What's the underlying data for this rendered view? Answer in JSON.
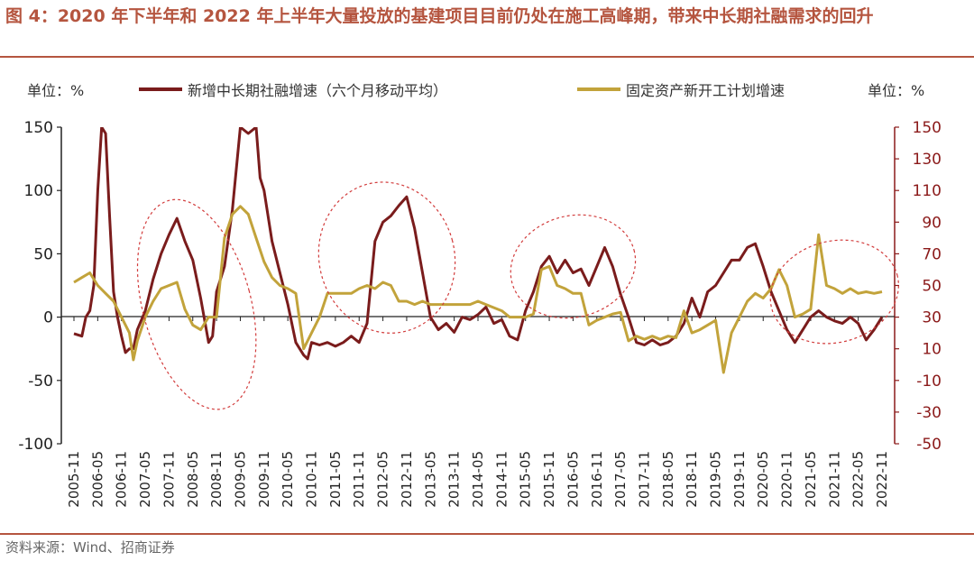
{
  "title": "图 4：2020 年下半年和 2022 年上半年大量投放的基建项目目前仍处在施工高峰期，带来中长期社融需求的回升",
  "unit_left": "单位：%",
  "unit_right": "单位：%",
  "source": "资料来源：Wind、招商证券",
  "colors": {
    "series1": "#7a1c1c",
    "series2": "#c2a33b",
    "accent": "#b5553f",
    "ellipse": "#d23c3c"
  },
  "chart_data": {
    "type": "line",
    "x_ticks": [
      "2005-11",
      "2006-05",
      "2006-11",
      "2007-05",
      "2007-11",
      "2008-05",
      "2008-11",
      "2009-05",
      "2009-11",
      "2010-05",
      "2010-11",
      "2011-05",
      "2011-11",
      "2012-05",
      "2012-11",
      "2013-05",
      "2013-11",
      "2014-05",
      "2014-11",
      "2015-05",
      "2015-11",
      "2016-05",
      "2016-11",
      "2017-05",
      "2017-11",
      "2018-05",
      "2018-11",
      "2019-05",
      "2019-11",
      "2020-05",
      "2020-11",
      "2021-05",
      "2021-11",
      "2022-05",
      "2022-11"
    ],
    "y_left": {
      "ticks": [
        150,
        100,
        50,
        0,
        -50,
        -100
      ],
      "range": [
        -100,
        150
      ]
    },
    "y_right": {
      "ticks": [
        150,
        130,
        110,
        90,
        70,
        50,
        30,
        10,
        -10,
        -30,
        -50
      ],
      "range": [
        -50,
        150
      ]
    },
    "series": [
      {
        "name": "新增中长期社融增速（六个月移动平均）",
        "axis": "left",
        "points": [
          [
            "2005-11",
            -13
          ],
          [
            "2006-01",
            -15
          ],
          [
            "2006-02",
            0
          ],
          [
            "2006-03",
            5
          ],
          [
            "2006-04",
            25
          ],
          [
            "2006-05",
            100
          ],
          [
            "2006-06",
            150
          ],
          [
            "2006-07",
            145
          ],
          [
            "2006-08",
            80
          ],
          [
            "2006-09",
            20
          ],
          [
            "2006-10",
            0
          ],
          [
            "2006-11",
            -15
          ],
          [
            "2006-12",
            -28
          ],
          [
            "2007-01",
            -25
          ],
          [
            "2007-02",
            -25
          ],
          [
            "2007-03",
            -10
          ],
          [
            "2007-05",
            5
          ],
          [
            "2007-07",
            30
          ],
          [
            "2007-09",
            50
          ],
          [
            "2007-11",
            65
          ],
          [
            "2008-01",
            78
          ],
          [
            "2008-03",
            60
          ],
          [
            "2008-05",
            45
          ],
          [
            "2008-07",
            15
          ],
          [
            "2008-09",
            -20
          ],
          [
            "2008-10",
            -15
          ],
          [
            "2008-11",
            20
          ],
          [
            "2009-01",
            40
          ],
          [
            "2009-03",
            85
          ],
          [
            "2009-05",
            150
          ],
          [
            "2009-07",
            145
          ],
          [
            "2009-09",
            150
          ],
          [
            "2009-10",
            110
          ],
          [
            "2009-11",
            100
          ],
          [
            "2010-01",
            60
          ],
          [
            "2010-03",
            35
          ],
          [
            "2010-05",
            10
          ],
          [
            "2010-07",
            -20
          ],
          [
            "2010-09",
            -30
          ],
          [
            "2010-10",
            -33
          ],
          [
            "2010-11",
            -20
          ],
          [
            "2011-01",
            -22
          ],
          [
            "2011-03",
            -20
          ],
          [
            "2011-05",
            -23
          ],
          [
            "2011-07",
            -20
          ],
          [
            "2011-09",
            -15
          ],
          [
            "2011-11",
            -20
          ],
          [
            "2012-01",
            -5
          ],
          [
            "2012-03",
            60
          ],
          [
            "2012-05",
            75
          ],
          [
            "2012-07",
            80
          ],
          [
            "2012-09",
            88
          ],
          [
            "2012-11",
            95
          ],
          [
            "2013-01",
            70
          ],
          [
            "2013-03",
            35
          ],
          [
            "2013-05",
            0
          ],
          [
            "2013-07",
            -10
          ],
          [
            "2013-09",
            -5
          ],
          [
            "2013-11",
            -12
          ],
          [
            "2014-01",
            0
          ],
          [
            "2014-03",
            -2
          ],
          [
            "2014-05",
            2
          ],
          [
            "2014-07",
            8
          ],
          [
            "2014-09",
            -5
          ],
          [
            "2014-11",
            -2
          ],
          [
            "2015-01",
            -15
          ],
          [
            "2015-03",
            -18
          ],
          [
            "2015-05",
            5
          ],
          [
            "2015-07",
            20
          ],
          [
            "2015-09",
            40
          ],
          [
            "2015-11",
            48
          ],
          [
            "2016-01",
            35
          ],
          [
            "2016-03",
            45
          ],
          [
            "2016-05",
            35
          ],
          [
            "2016-07",
            38
          ],
          [
            "2016-09",
            25
          ],
          [
            "2016-11",
            40
          ],
          [
            "2017-01",
            55
          ],
          [
            "2017-03",
            40
          ],
          [
            "2017-05",
            18
          ],
          [
            "2017-07",
            0
          ],
          [
            "2017-09",
            -20
          ],
          [
            "2017-11",
            -22
          ],
          [
            "2018-01",
            -18
          ],
          [
            "2018-03",
            -22
          ],
          [
            "2018-05",
            -20
          ],
          [
            "2018-07",
            -15
          ],
          [
            "2018-09",
            -5
          ],
          [
            "2018-11",
            15
          ],
          [
            "2019-01",
            0
          ],
          [
            "2019-03",
            20
          ],
          [
            "2019-05",
            25
          ],
          [
            "2019-07",
            35
          ],
          [
            "2019-09",
            45
          ],
          [
            "2019-11",
            45
          ],
          [
            "2020-01",
            55
          ],
          [
            "2020-03",
            58
          ],
          [
            "2020-05",
            40
          ],
          [
            "2020-07",
            20
          ],
          [
            "2020-09",
            5
          ],
          [
            "2020-11",
            -10
          ],
          [
            "2021-01",
            -20
          ],
          [
            "2021-03",
            -10
          ],
          [
            "2021-05",
            0
          ],
          [
            "2021-07",
            5
          ],
          [
            "2021-09",
            0
          ],
          [
            "2021-11",
            -3
          ],
          [
            "2022-01",
            -5
          ],
          [
            "2022-03",
            0
          ],
          [
            "2022-05",
            -5
          ],
          [
            "2022-07",
            -18
          ],
          [
            "2022-09",
            -10
          ],
          [
            "2022-11",
            0
          ]
        ]
      },
      {
        "name": "固定资产新开工计划增速",
        "axis": "right",
        "points": [
          [
            "2005-11",
            52
          ],
          [
            "2006-01",
            55
          ],
          [
            "2006-03",
            58
          ],
          [
            "2006-05",
            50
          ],
          [
            "2006-07",
            45
          ],
          [
            "2006-09",
            40
          ],
          [
            "2006-11",
            30
          ],
          [
            "2007-01",
            20
          ],
          [
            "2007-02",
            3
          ],
          [
            "2007-03",
            15
          ],
          [
            "2007-05",
            30
          ],
          [
            "2007-07",
            40
          ],
          [
            "2007-09",
            48
          ],
          [
            "2007-11",
            50
          ],
          [
            "2008-01",
            52
          ],
          [
            "2008-03",
            35
          ],
          [
            "2008-05",
            25
          ],
          [
            "2008-07",
            22
          ],
          [
            "2008-09",
            30
          ],
          [
            "2008-11",
            30
          ],
          [
            "2009-01",
            80
          ],
          [
            "2009-03",
            95
          ],
          [
            "2009-05",
            100
          ],
          [
            "2009-07",
            95
          ],
          [
            "2009-09",
            80
          ],
          [
            "2009-11",
            65
          ],
          [
            "2010-01",
            55
          ],
          [
            "2010-03",
            50
          ],
          [
            "2010-05",
            48
          ],
          [
            "2010-07",
            45
          ],
          [
            "2010-09",
            10
          ],
          [
            "2010-11",
            20
          ],
          [
            "2011-01",
            30
          ],
          [
            "2011-03",
            45
          ],
          [
            "2011-05",
            45
          ],
          [
            "2011-07",
            45
          ],
          [
            "2011-09",
            45
          ],
          [
            "2011-11",
            48
          ],
          [
            "2012-01",
            50
          ],
          [
            "2012-03",
            48
          ],
          [
            "2012-05",
            52
          ],
          [
            "2012-07",
            50
          ],
          [
            "2012-09",
            40
          ],
          [
            "2012-11",
            40
          ],
          [
            "2013-01",
            38
          ],
          [
            "2013-03",
            40
          ],
          [
            "2013-05",
            38
          ],
          [
            "2013-07",
            38
          ],
          [
            "2013-09",
            38
          ],
          [
            "2013-11",
            38
          ],
          [
            "2014-01",
            38
          ],
          [
            "2014-03",
            38
          ],
          [
            "2014-05",
            40
          ],
          [
            "2014-07",
            38
          ],
          [
            "2014-09",
            36
          ],
          [
            "2014-11",
            34
          ],
          [
            "2015-01",
            30
          ],
          [
            "2015-03",
            30
          ],
          [
            "2015-05",
            30
          ],
          [
            "2015-07",
            32
          ],
          [
            "2015-09",
            60
          ],
          [
            "2015-11",
            62
          ],
          [
            "2016-01",
            50
          ],
          [
            "2016-03",
            48
          ],
          [
            "2016-05",
            45
          ],
          [
            "2016-07",
            45
          ],
          [
            "2016-09",
            25
          ],
          [
            "2016-11",
            28
          ],
          [
            "2017-01",
            30
          ],
          [
            "2017-03",
            32
          ],
          [
            "2017-05",
            33
          ],
          [
            "2017-07",
            15
          ],
          [
            "2017-09",
            18
          ],
          [
            "2017-11",
            16
          ],
          [
            "2018-01",
            18
          ],
          [
            "2018-03",
            16
          ],
          [
            "2018-05",
            18
          ],
          [
            "2018-07",
            17
          ],
          [
            "2018-09",
            34
          ],
          [
            "2018-11",
            20
          ],
          [
            "2019-01",
            22
          ],
          [
            "2019-03",
            25
          ],
          [
            "2019-05",
            28
          ],
          [
            "2019-07",
            -5
          ],
          [
            "2019-09",
            20
          ],
          [
            "2019-11",
            30
          ],
          [
            "2020-01",
            40
          ],
          [
            "2020-03",
            45
          ],
          [
            "2020-05",
            42
          ],
          [
            "2020-07",
            48
          ],
          [
            "2020-09",
            60
          ],
          [
            "2020-11",
            50
          ],
          [
            "2021-01",
            30
          ],
          [
            "2021-03",
            32
          ],
          [
            "2021-05",
            35
          ],
          [
            "2021-07",
            82
          ],
          [
            "2021-09",
            50
          ],
          [
            "2021-11",
            48
          ],
          [
            "2022-01",
            45
          ],
          [
            "2022-03",
            48
          ],
          [
            "2022-05",
            45
          ],
          [
            "2022-07",
            46
          ],
          [
            "2022-09",
            45
          ],
          [
            "2022-11",
            46
          ]
        ]
      }
    ]
  }
}
